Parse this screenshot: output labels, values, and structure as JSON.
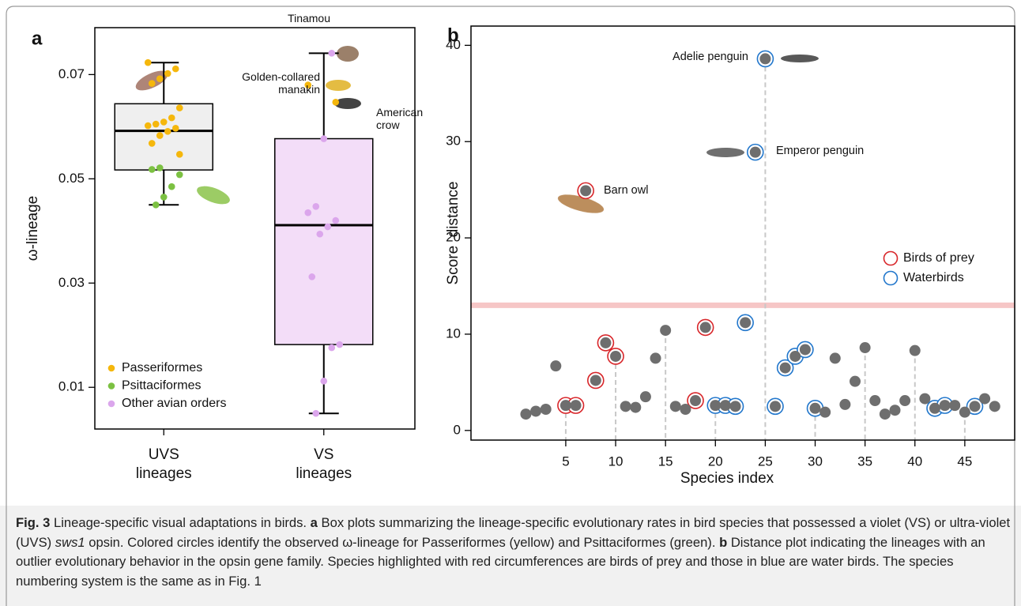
{
  "chart_data": [
    {
      "type": "box",
      "panel": "a",
      "ylabel": "ω-lineage",
      "categories": [
        "UVS lineages",
        "VS lineages"
      ],
      "box_colors": [
        "#efefef",
        "#f3ddf8"
      ],
      "boxes": [
        {
          "whisker_low": 0.045,
          "q1": 0.0517,
          "median": 0.0592,
          "q3": 0.0644,
          "whisker_high": 0.0723
        },
        {
          "whisker_low": 0.005,
          "q1": 0.0182,
          "median": 0.0411,
          "q3": 0.0577,
          "whisker_high": 0.0741
        }
      ],
      "series": [
        {
          "name": "Passeriformes",
          "color": "#f5b70c",
          "values": [
            [
              0.0723,
              0.0711,
              0.0702,
              0.0692,
              0.0683,
              0.0636,
              0.0617,
              0.0609,
              0.0605,
              0.0602,
              0.0597,
              0.0591,
              0.0583,
              0.0568,
              0.0547
            ],
            [
              0.068,
              0.0647
            ]
          ]
        },
        {
          "name": "Psittaciformes",
          "color": "#7cc142",
          "values": [
            [
              0.0521,
              0.0518,
              0.0508,
              0.0485,
              0.0465,
              0.045
            ],
            []
          ]
        },
        {
          "name": "Other avian orders",
          "color": "#dba6ec",
          "values": [
            [],
            [
              0.0741,
              0.0577,
              0.0447,
              0.0435,
              0.042,
              0.0408,
              0.0394,
              0.0312,
              0.0182,
              0.0176,
              0.0112,
              0.005
            ]
          ]
        }
      ],
      "annotations": [
        "Tinamou",
        "Golden-collared manakin",
        "American crow"
      ],
      "ylim": [
        0.002,
        0.079
      ],
      "yticks": [
        0.01,
        0.03,
        0.05,
        0.07
      ],
      "legend": "lower left"
    },
    {
      "type": "scatter",
      "panel": "b",
      "xlabel": "Species index",
      "ylabel": "Score  distance",
      "x": [
        1,
        2,
        3,
        4,
        5,
        6,
        7,
        8,
        9,
        10,
        11,
        12,
        13,
        14,
        15,
        16,
        17,
        18,
        19,
        20,
        21,
        22,
        23,
        24,
        25,
        26,
        27,
        28,
        29,
        30,
        31,
        32,
        33,
        34,
        35,
        36,
        37,
        38,
        39,
        40,
        41,
        42,
        43,
        44,
        45,
        46,
        47,
        48
      ],
      "values": [
        1.7,
        2.0,
        2.2,
        6.7,
        2.6,
        2.6,
        24.9,
        5.2,
        9.1,
        7.7,
        2.5,
        2.4,
        3.5,
        7.5,
        10.4,
        2.5,
        2.2,
        3.1,
        10.7,
        2.6,
        2.6,
        2.5,
        11.2,
        28.9,
        38.6,
        2.5,
        6.5,
        7.7,
        8.4,
        2.3,
        1.9,
        7.5,
        2.7,
        5.1,
        8.6,
        3.1,
        1.7,
        2.1,
        3.1,
        8.3,
        3.3,
        2.3,
        2.6,
        2.6,
        1.9,
        2.5,
        3.3,
        2.5
      ],
      "color": "#6e6e6e",
      "highlights": [
        {
          "name": "Birds of prey",
          "color": "#d8262a",
          "x": [
            5,
            6,
            7,
            8,
            9,
            10,
            18,
            19
          ]
        },
        {
          "name": "Waterbirds",
          "color": "#2277cc",
          "x": [
            20,
            21,
            22,
            23,
            24,
            25,
            26,
            27,
            28,
            29,
            30,
            42,
            43,
            46
          ]
        }
      ],
      "threshold": 13,
      "threshold_color": "#f6c6c6",
      "annotations": [
        "Adelie penguin",
        "Emperor penguin",
        "Barn owl"
      ],
      "xlim": [
        -4.5,
        50
      ],
      "ylim": [
        -1,
        42
      ],
      "xticks": [
        5,
        10,
        15,
        20,
        25,
        30,
        35,
        40,
        45
      ],
      "yticks": [
        0,
        10,
        20,
        30,
        40
      ],
      "legend": "center right"
    }
  ],
  "caption": {
    "figure": "Fig. 3",
    "title": "Lineage-specific visual adaptations in birds.",
    "panel_a": "a",
    "text_a1": "Box plots summarizing the lineage-specific evolutionary rates in bird species that possessed a violet (VS) or ultra-violet (UVS)",
    "gene": "sws1",
    "text_a2": "opsin. Colored circles identify the observed ω-lineage for Passeriformes (yellow) and Psittaciformes (green).",
    "panel_b": "b",
    "text_b": "Distance plot indicating the lineages with an outlier evolutionary behavior in the opsin gene family. Species highlighted with red circumferences are birds of prey and those in blue are water birds. The species numbering system is the same as in Fig. 1"
  }
}
